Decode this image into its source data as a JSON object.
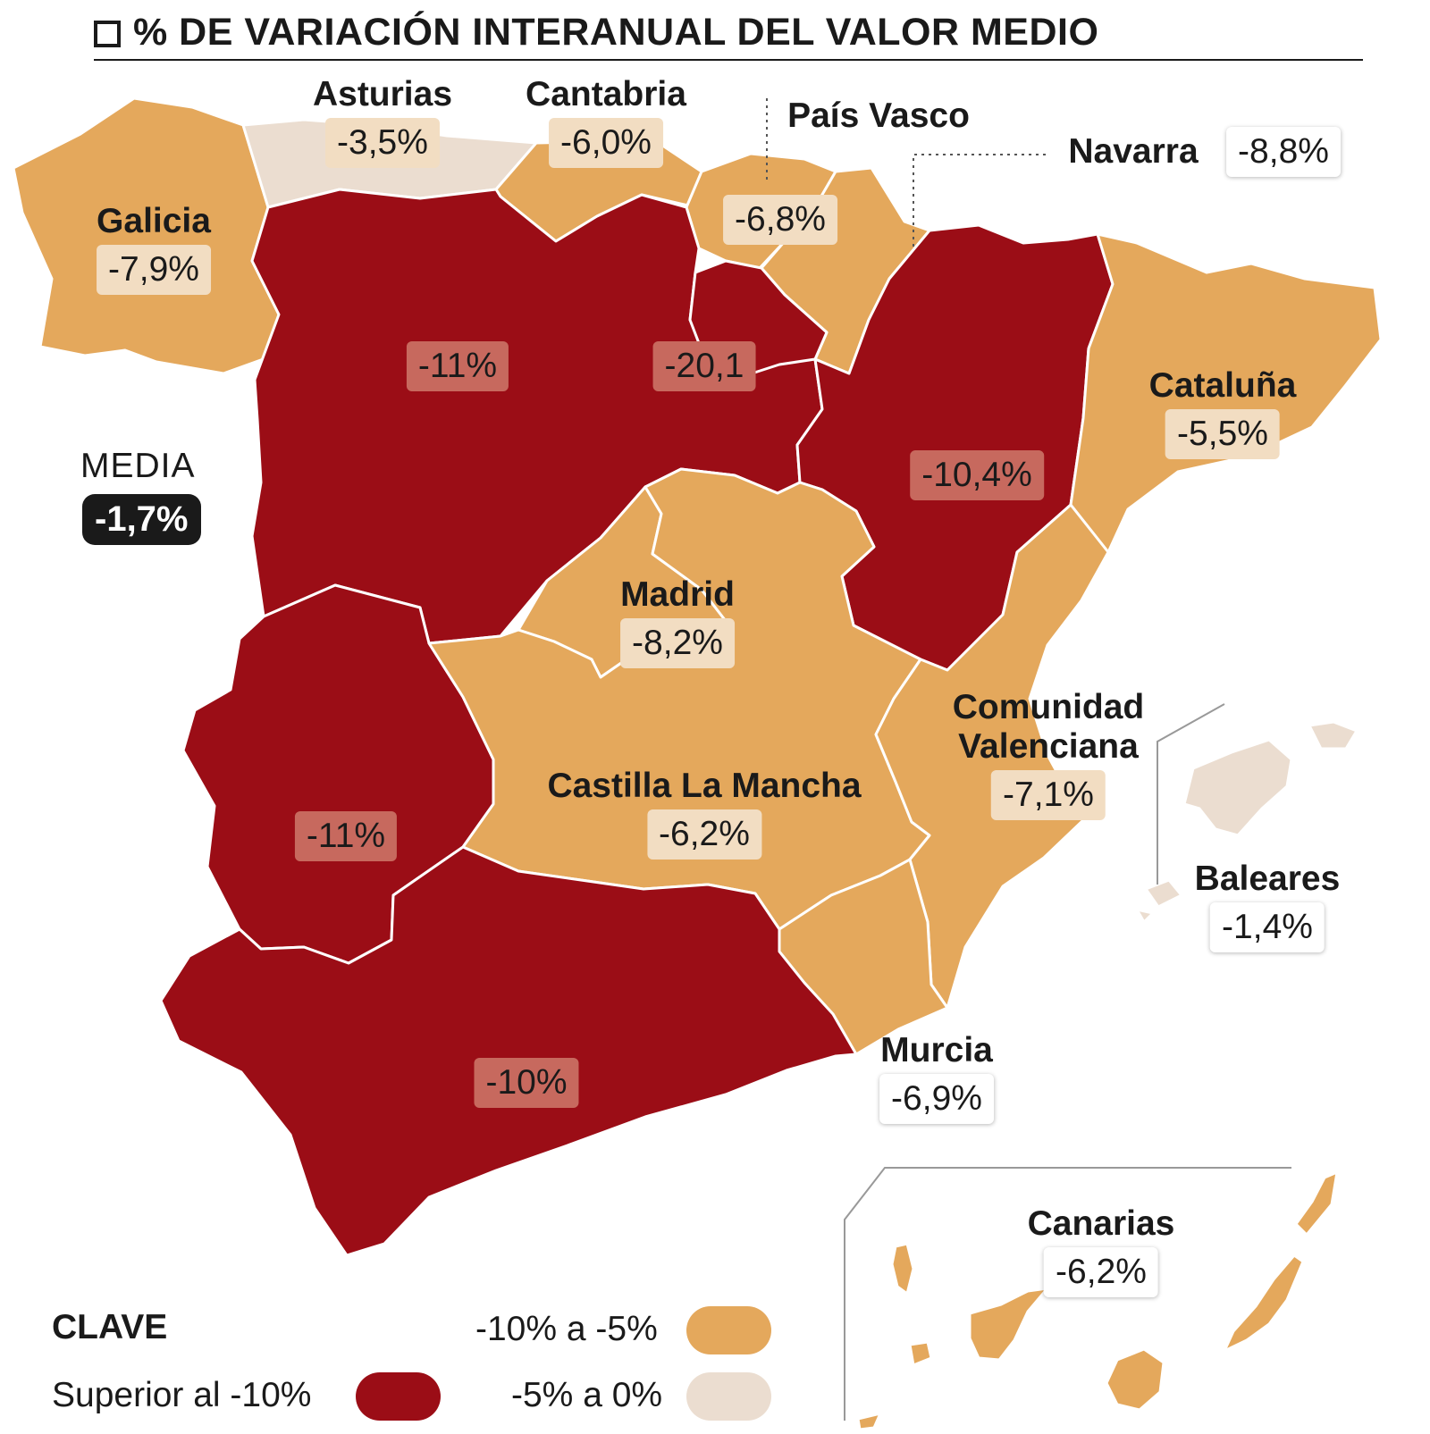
{
  "title": "% DE VARIACIÓN INTERANUAL DEL VALOR MEDIO",
  "colors": {
    "superior_10": "#9b0d16",
    "rango_10_5": "#e4a85c",
    "rango_5_0": "#ebddd0",
    "border": "#ffffff"
  },
  "regions": {
    "galicia": {
      "name": "Galicia",
      "value": "-7,9%",
      "class": "-10% a -5%"
    },
    "asturias": {
      "name": "Asturias",
      "value": "-3,5%",
      "class": "-5% a 0%"
    },
    "cantabria": {
      "name": "Cantabria",
      "value": "-6,0%",
      "class": "-10% a -5%"
    },
    "pais_vasco": {
      "name": "País Vasco",
      "value": "-6,8%",
      "class": "-10% a -5%"
    },
    "navarra": {
      "name": "Navarra",
      "value": "-8,8%",
      "class": "-10% a -5%"
    },
    "castilla_leon": {
      "value": "-11%",
      "class": "Superior al -10%"
    },
    "la_rioja": {
      "value": "-20,1",
      "class": "Superior al -10%"
    },
    "aragon": {
      "value": "-10,4%",
      "class": "Superior al -10%"
    },
    "cataluna": {
      "name": "Cataluña",
      "value": "-5,5%",
      "class": "-10% a -5%"
    },
    "madrid": {
      "name": "Madrid",
      "value": "-8,2%",
      "class": "-10% a -5%"
    },
    "extremadura": {
      "value": "-11%",
      "class": "Superior al -10%"
    },
    "castilla_la_mancha": {
      "name": "Castilla La Mancha",
      "value": "-6,2%",
      "class": "-10% a -5%"
    },
    "comunidad_valenciana": {
      "name_line1": "Comunidad",
      "name_line2": "Valenciana",
      "value": "-7,1%",
      "class": "-10% a -5%"
    },
    "baleares": {
      "name": "Baleares",
      "value": "-1,4%",
      "class": "-5% a 0%"
    },
    "murcia": {
      "name": "Murcia",
      "value": "-6,9%",
      "class": "-10% a -5%"
    },
    "andalucia": {
      "value": "-10%",
      "class": "Superior al -10%"
    },
    "canarias": {
      "name": "Canarias",
      "value": "-6,2%",
      "class": "-10% a -5%"
    }
  },
  "media": {
    "label": "MEDIA",
    "value": "-1,7%"
  },
  "legend": {
    "title": "CLAVE",
    "items": [
      {
        "label": "Superior al -10%",
        "color": "#9b0d16"
      },
      {
        "label": "-10% a -5%",
        "color": "#e4a85c"
      },
      {
        "label": "-5% a 0%",
        "color": "#ebddd0"
      }
    ]
  }
}
